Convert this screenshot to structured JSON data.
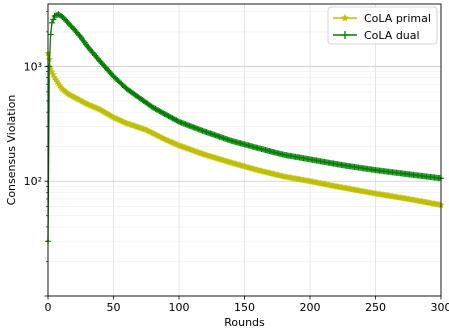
{
  "chart_data": {
    "type": "line",
    "xlabel": "Rounds",
    "ylabel": "Consensus Violation",
    "xlim": [
      0,
      300
    ],
    "ylim": [
      10,
      3500
    ],
    "yscale": "log",
    "grid": true,
    "legend_position": "top-right",
    "x_ticks": [
      0,
      50,
      100,
      150,
      200,
      250,
      300
    ],
    "x_tick_labels": [
      "0",
      "50",
      "100",
      "150",
      "200",
      "250",
      "300"
    ],
    "y_ticks": [
      100,
      1000
    ],
    "y_tick_labels": [
      "10²",
      "10³"
    ],
    "series": [
      {
        "name": "CoLA primal",
        "color": "#bfbf00",
        "marker": "star",
        "x": [
          0,
          1,
          2,
          5,
          10,
          15,
          20,
          30,
          40,
          50,
          60,
          75,
          90,
          100,
          120,
          140,
          160,
          180,
          200,
          220,
          250,
          275,
          300
        ],
        "y": [
          1300,
          1150,
          950,
          800,
          650,
          580,
          540,
          470,
          420,
          360,
          320,
          280,
          230,
          205,
          170,
          145,
          125,
          110,
          100,
          90,
          78,
          70,
          62
        ]
      },
      {
        "name": "CoLA dual",
        "color": "#007f00",
        "marker": "plus",
        "x": [
          0,
          1,
          2,
          3,
          5,
          8,
          12,
          16,
          20,
          25,
          30,
          40,
          50,
          60,
          70,
          80,
          90,
          100,
          120,
          140,
          160,
          180,
          200,
          225,
          250,
          275,
          300
        ],
        "y": [
          30,
          1000,
          1900,
          2400,
          2750,
          2850,
          2650,
          2350,
          2100,
          1800,
          1500,
          1100,
          820,
          640,
          530,
          440,
          380,
          330,
          270,
          225,
          195,
          170,
          155,
          138,
          125,
          115,
          106
        ]
      }
    ]
  }
}
